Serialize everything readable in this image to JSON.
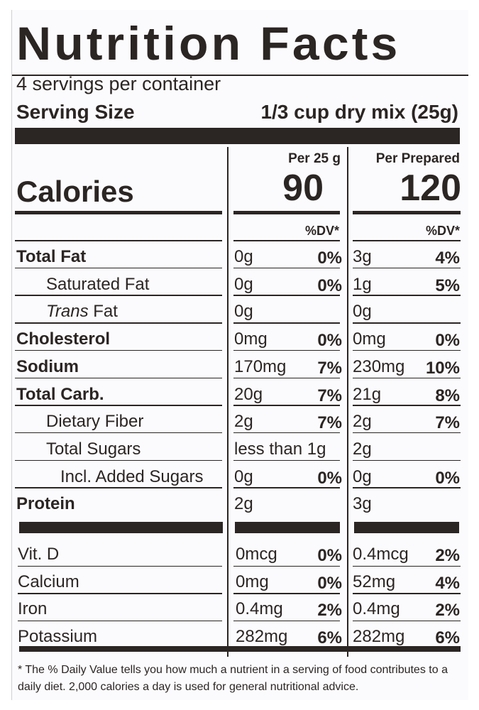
{
  "title": "Nutrition Facts",
  "servings": "4 servings per container",
  "serving_size_label": "Serving Size",
  "serving_size_value": "1/3 cup dry mix (25g)",
  "columns": {
    "col1_header": "Per 25 g",
    "col2_header": "Per Prepared",
    "dv_header": "%DV*"
  },
  "calories": {
    "label": "Calories",
    "col1": "90",
    "col2": "120"
  },
  "nutrients": [
    {
      "label": "Total Fat",
      "style": "bold",
      "amt1": "0g",
      "pct1": "0%",
      "amt2": "3g",
      "pct2": "4%"
    },
    {
      "label": "Saturated Fat",
      "style": "indent",
      "amt1": "0g",
      "pct1": "0%",
      "amt2": "1g",
      "pct2": "5%"
    },
    {
      "label_italic": "Trans",
      "label": " Fat",
      "style": "indent",
      "amt1": "0g",
      "pct1": "",
      "amt2": "0g",
      "pct2": ""
    },
    {
      "label": "Cholesterol",
      "style": "bold",
      "amt1": "0mg",
      "pct1": "0%",
      "amt2": "0mg",
      "pct2": "0%"
    },
    {
      "label": "Sodium",
      "style": "bold",
      "amt1": "170mg",
      "pct1": "7%",
      "amt2": "230mg",
      "pct2": "10%"
    },
    {
      "label": "Total Carb.",
      "style": "bold",
      "amt1": "20g",
      "pct1": "7%",
      "amt2": "21g",
      "pct2": "8%"
    },
    {
      "label": "Dietary Fiber",
      "style": "indent",
      "amt1": "2g",
      "pct1": "7%",
      "amt2": "2g",
      "pct2": "7%"
    },
    {
      "label": "Total Sugars",
      "style": "indent",
      "amt1": "less than 1g",
      "pct1": "",
      "amt2": "2g",
      "pct2": ""
    },
    {
      "label": "Incl. Added Sugars",
      "style": "indent2",
      "amt1": "0g",
      "pct1": "0%",
      "amt2": "0g",
      "pct2": "0%"
    },
    {
      "label": "Protein",
      "style": "bold",
      "amt1": "2g",
      "pct1": "",
      "amt2": "3g",
      "pct2": ""
    }
  ],
  "vitamins": [
    {
      "label": "Vit. D",
      "amt1": "0mcg",
      "pct1": "0%",
      "amt2": "0.4mcg",
      "pct2": "2%"
    },
    {
      "label": "Calcium",
      "amt1": "0mg",
      "pct1": "0%",
      "amt2": "52mg",
      "pct2": "4%"
    },
    {
      "label": "Iron",
      "amt1": "0.4mg",
      "pct1": "2%",
      "amt2": "0.4mg",
      "pct2": "2%"
    },
    {
      "label": "Potassium",
      "amt1": "282mg",
      "pct1": "6%",
      "amt2": "282mg",
      "pct2": "6%"
    }
  ],
  "footnote": "* The % Daily Value tells you how much a nutrient in  a serving of food contributes to a daily diet. 2,000 calories a day is used for general nutritional advice."
}
